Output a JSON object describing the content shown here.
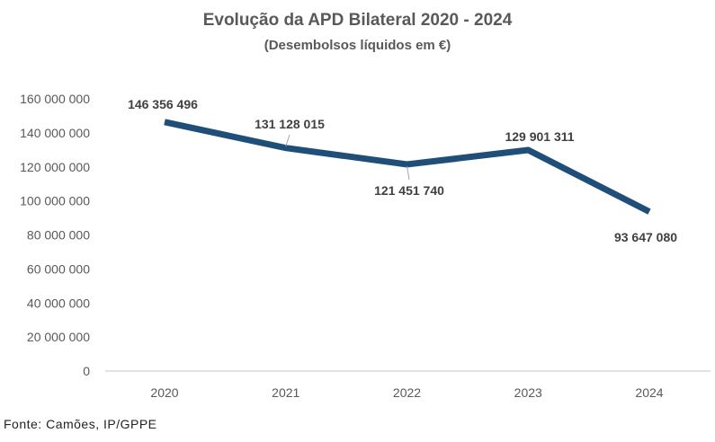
{
  "chart_data": {
    "type": "line",
    "title": "Evolução da APD Bilateral 2020 - 2024",
    "subtitle": "(Desembolsos líquidos em €)",
    "categories": [
      "2020",
      "2021",
      "2022",
      "2023",
      "2024"
    ],
    "values": [
      146356496,
      131128015,
      121451740,
      129901311,
      93647080
    ],
    "data_labels": [
      "146 356 496",
      "131 128 015",
      "121 451 740",
      "129 901 311",
      "93 647 080"
    ],
    "ylim": [
      0,
      160000000
    ],
    "yticks": [
      0,
      20000000,
      40000000,
      60000000,
      80000000,
      100000000,
      120000000,
      140000000,
      160000000
    ],
    "ytick_labels": [
      "0",
      "20 000 000",
      "40 000 000",
      "60 000 000",
      "80 000 000",
      "100 000 000",
      "120 000 000",
      "140 000 000",
      "160 000 000"
    ],
    "grid": false,
    "legend": "none",
    "line_color": "#1F4E79",
    "source": "Fonte: Camões, IP/GPPE"
  }
}
